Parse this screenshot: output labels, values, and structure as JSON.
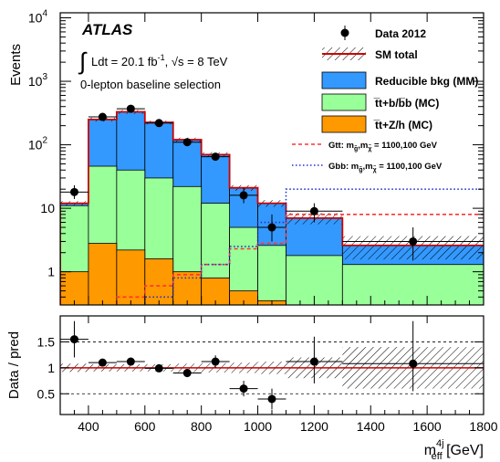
{
  "chart_data": {
    "type": "bar",
    "bins": [
      300,
      400,
      500,
      600,
      700,
      800,
      900,
      1000,
      1100,
      1300,
      1800
    ],
    "top": {
      "ylabel": "Events",
      "ylog": true,
      "ylim": [
        0.3,
        12000
      ],
      "yticks": [
        {
          "v": 1,
          "label": "1"
        },
        {
          "v": 10,
          "label": "10"
        },
        {
          "v": 100,
          "label": "10",
          "exp": "2"
        },
        {
          "v": 1000,
          "label": "10",
          "exp": "3"
        },
        {
          "v": 10000,
          "label": "10",
          "exp": "4"
        }
      ],
      "stack": [
        {
          "name": "t̅t+Z/h (MC)",
          "color": "#ff9900",
          "values": [
            1.0,
            2.8,
            2.2,
            1.6,
            1.0,
            0.8,
            0.5,
            0.35,
            0.1,
            0.05
          ]
        },
        {
          "name": "t̅t+b/b̅b̅ (MC)",
          "color": "#99ff99",
          "values": [
            11.0,
            46.0,
            40.0,
            30.0,
            22.0,
            12.0,
            5.0,
            2.6,
            1.8,
            1.3
          ]
        },
        {
          "name": "Reducible bkg (MM)",
          "color": "#3399ff",
          "values": [
            12.0,
            250.0,
            330.0,
            225.0,
            120.0,
            70.0,
            21.0,
            12.0,
            7.0,
            2.6
          ]
        }
      ],
      "sm_total": {
        "name": "SM total",
        "values": [
          12.0,
          250.0,
          330.0,
          225.0,
          120.0,
          70.0,
          21.0,
          12.0,
          7.0,
          2.6
        ]
      },
      "data": {
        "name": "Data 2012",
        "points": [
          {
            "x": 350,
            "y": 18,
            "ylo": 14,
            "yhi": 23
          },
          {
            "x": 450,
            "y": 275,
            "ylo": 258,
            "yhi": 292
          },
          {
            "x": 550,
            "y": 370,
            "ylo": 350,
            "yhi": 390
          },
          {
            "x": 650,
            "y": 220,
            "ylo": 205,
            "yhi": 235
          },
          {
            "x": 750,
            "y": 110,
            "ylo": 100,
            "yhi": 121
          },
          {
            "x": 850,
            "y": 65,
            "ylo": 57,
            "yhi": 73
          },
          {
            "x": 950,
            "y": 16,
            "ylo": 12,
            "yhi": 21
          },
          {
            "x": 1050,
            "y": 5,
            "ylo": 3,
            "yhi": 8
          },
          {
            "x": 1200,
            "y": 9,
            "ylo": 6,
            "yhi": 12
          },
          {
            "x": 1550,
            "y": 3,
            "ylo": 1.5,
            "yhi": 5
          }
        ]
      },
      "signals": [
        {
          "name": "Gtt",
          "color": "#ff3333",
          "style": "dashed",
          "values": [
            0.1,
            0.2,
            0.4,
            0.6,
            0.9,
            1.3,
            2.3,
            2.8,
            8.0,
            8.0
          ]
        },
        {
          "name": "Gbb",
          "color": "#2233cc",
          "style": "dotted",
          "values": [
            0.05,
            0.1,
            0.25,
            0.4,
            0.8,
            1.3,
            2.5,
            6.0,
            20.0,
            20.0
          ]
        }
      ]
    },
    "bottom": {
      "ylabel": "Data / pred",
      "ylim": [
        0.1,
        2.0
      ],
      "yticks": [
        0.5,
        1,
        1.5
      ],
      "uncertainty": [
        0.08,
        0.07,
        0.07,
        0.07,
        0.08,
        0.09,
        0.1,
        0.12,
        0.2,
        0.4
      ],
      "points": [
        {
          "x": 350,
          "y": 1.55,
          "ylo": 1.2,
          "yhi": 1.9
        },
        {
          "x": 450,
          "y": 1.1,
          "ylo": 1.04,
          "yhi": 1.16
        },
        {
          "x": 550,
          "y": 1.12,
          "ylo": 1.06,
          "yhi": 1.18
        },
        {
          "x": 650,
          "y": 0.99,
          "ylo": 0.93,
          "yhi": 1.05
        },
        {
          "x": 750,
          "y": 0.9,
          "ylo": 0.82,
          "yhi": 0.98
        },
        {
          "x": 850,
          "y": 1.12,
          "ylo": 1.0,
          "yhi": 1.24
        },
        {
          "x": 950,
          "y": 0.6,
          "ylo": 0.45,
          "yhi": 0.75
        },
        {
          "x": 1050,
          "y": 0.4,
          "ylo": 0.2,
          "yhi": 0.6
        },
        {
          "x": 1200,
          "y": 1.12,
          "ylo": 0.7,
          "yhi": 1.6
        },
        {
          "x": 1550,
          "y": 1.08,
          "ylo": 0.55,
          "yhi": 1.9
        }
      ]
    },
    "xlim": [
      300,
      1800
    ],
    "xticks": [
      400,
      600,
      800,
      1000,
      1200,
      1400,
      1600,
      1800
    ],
    "xlabel": "m",
    "xlabel_sup": "4j",
    "xlabel_sub": "eff",
    "xlabel_unit": " [GeV]",
    "legend_placement": "top-right"
  },
  "labels": {
    "atlas": "ATLAS",
    "lumi": "Ldt = 20.1 fb",
    "lumi_sup": "-1",
    "sqrt_s": ", √s = 8 TeV",
    "selection": "0-lepton baseline selection"
  },
  "legend": {
    "data": "Data 2012",
    "sm_total": "SM total",
    "reducible": "Reducible bkg (MM)",
    "ttbb": "t̅t+b/b̅b (MC)",
    "ttzh": "t̅t+Z/h (MC)",
    "gtt_prefix": "Gtt: m",
    "gtt_suffix": " = 1100,100 GeV",
    "gbb_prefix": "Gbb: m",
    "gbb_suffix": " = 1100,100 GeV"
  },
  "colors": {
    "reducible": "#3399ff",
    "ttbb": "#99ff99",
    "ttzh": "#ff9900",
    "sm_line": "#cc0000"
  }
}
